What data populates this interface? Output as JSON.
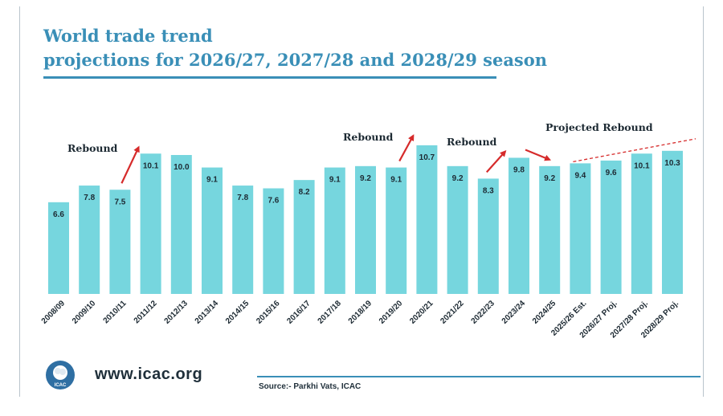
{
  "header": {
    "title_line1": "World trade trend",
    "title_line2": "projections for 2026/27, 2027/28 and 2028/29 season"
  },
  "footer": {
    "website": "www.icac.org",
    "logo_text": "ICAC",
    "source": "Source:- Parkhi Vats, ICAC"
  },
  "colors": {
    "bar": "#76d6de",
    "title": "#3a8fb7",
    "arrow": "#d62b2b"
  },
  "chart_data": {
    "type": "bar",
    "title": "World trade trend projections for 2026/27, 2027/28 and 2028/29 season",
    "xlabel": "",
    "ylabel": "",
    "categories": [
      "2008/09",
      "2009/10",
      "2010/11",
      "2011/12",
      "2012/13",
      "2013/14",
      "2014/15",
      "2015/16",
      "2016/17",
      "2017/18",
      "2018/19",
      "2019/20",
      "2020/21",
      "2021/22",
      "2022/23",
      "2023/24",
      "2024/25",
      "2025/26 Est.",
      "2026/27 Proj.",
      "2027/28 Proj.",
      "2028/29 Proj."
    ],
    "values": [
      6.6,
      7.8,
      7.5,
      10.1,
      10.0,
      9.1,
      7.8,
      7.6,
      8.2,
      9.1,
      9.2,
      9.1,
      10.7,
      9.2,
      8.3,
      9.8,
      9.2,
      9.4,
      9.6,
      10.1,
      10.3
    ],
    "value_labels": [
      "6.6",
      "7.8",
      "7.5",
      "10.1",
      "10.0",
      "9.1",
      "7.8",
      "7.6",
      "8.2",
      "9.1",
      "9.2",
      "9.1",
      "10.7",
      "9.2",
      "8.3",
      "9.8",
      "9.2",
      "9.4",
      "9.6",
      "10.1",
      "10.3"
    ],
    "ylim": [
      0,
      11
    ],
    "grid": false,
    "legend": "none",
    "annotations": [
      {
        "text": "Rebound",
        "from_index": 2,
        "to_index": 3
      },
      {
        "text": "Rebound",
        "from_index": 11,
        "to_index": 12
      },
      {
        "text": "Rebound",
        "from_index": 14,
        "to_index": 15
      },
      {
        "text": "",
        "from_index": 15,
        "to_index": 16
      },
      {
        "text": "Projected Rebound",
        "from_index": 17,
        "to_index": 20
      }
    ]
  }
}
